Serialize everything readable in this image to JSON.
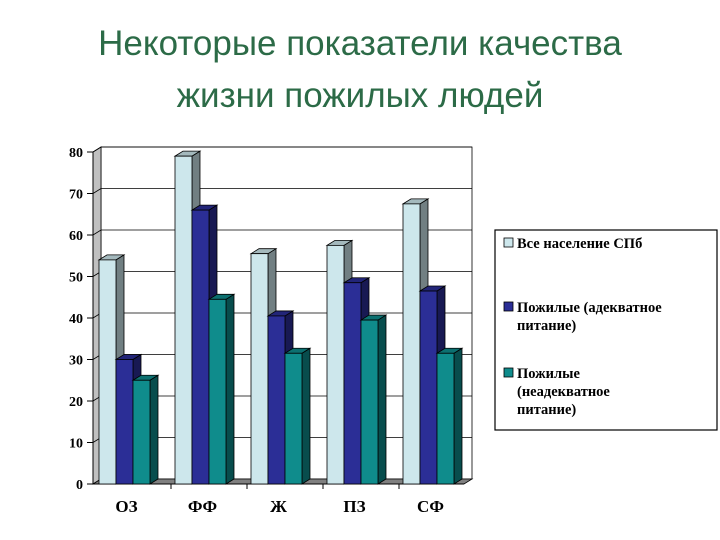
{
  "slide": {
    "title_line1": "Некоторые показатели качества",
    "title_line2": "жизни  пожилых людей"
  },
  "chart_data": {
    "type": "bar",
    "style": "3d-clustered",
    "categories": [
      "ОЗ",
      "ФФ",
      "Ж",
      "ПЗ",
      "СФ"
    ],
    "ylim": [
      0,
      80
    ],
    "yticks": [
      0,
      10,
      20,
      30,
      40,
      50,
      60,
      70,
      80
    ],
    "grid": true,
    "legend_position": "right",
    "series": [
      {
        "name": "Все население СПб",
        "legend_lines": [
          "Все население СПб"
        ],
        "color": "#cde7ec",
        "values": [
          54,
          79,
          55.5,
          57.5,
          67.5
        ]
      },
      {
        "name": "Пожилые (адекватное питание)",
        "legend_lines": [
          "Пожилые (адекватное",
          "питание)"
        ],
        "color": "#2b2e96",
        "values": [
          30,
          66,
          40.5,
          48.5,
          46.5
        ]
      },
      {
        "name": "Пожилые (неадекватное питание)",
        "legend_lines": [
          "Пожилые",
          "(неадекватное",
          "питание)"
        ],
        "color": "#0f8c8c",
        "values": [
          25,
          44.5,
          31.5,
          39.5,
          31.5
        ]
      }
    ]
  }
}
